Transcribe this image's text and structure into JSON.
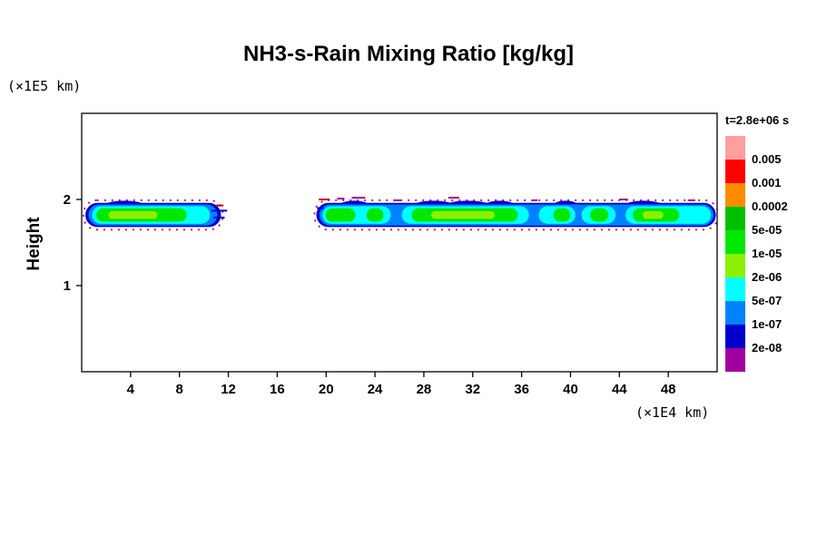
{
  "chart_data": {
    "type": "filled-contour",
    "title": "NH3-s-Rain Mixing Ratio [kg/kg]",
    "time_label": "t=2.8e+06 s",
    "x_unit_label": "(×1E4 km)",
    "y_unit_label": "(×1E5 km)",
    "y_axis_title": "Height",
    "xlim": [
      0,
      52
    ],
    "ylim": [
      0,
      3
    ],
    "xticks": [
      4,
      8,
      12,
      16,
      20,
      24,
      28,
      32,
      36,
      40,
      44,
      48
    ],
    "yticks": [
      1,
      2
    ],
    "grid": false,
    "colorbar": {
      "position": "right",
      "boundary_labels_top_to_bottom": [
        "0.005",
        "0.001",
        "0.0002",
        "5e-05",
        "1e-05",
        "2e-06",
        "5e-07",
        "1e-07",
        "2e-08"
      ],
      "cell_colors_top_to_bottom": [
        "#ff9e9e",
        "#ff0000",
        "#ff8c00",
        "#00c000",
        "#00e800",
        "#8cf000",
        "#00ffff",
        "#0082ff",
        "#0000cd",
        "#a100a1"
      ]
    },
    "bands": {
      "y_center": 1.82,
      "layers": [
        {
          "name": "fringe",
          "color": "#a100a1",
          "half_height": 0.155,
          "style": "dashed-outline",
          "segments": [
            [
              0.3,
              11.4
            ],
            [
              19.2,
              51.9
            ]
          ]
        },
        {
          "name": "navy",
          "color": "#0000cd",
          "half_height": 0.14,
          "segments": [
            [
              0.3,
              11.4
            ],
            [
              19.2,
              51.9
            ]
          ]
        },
        {
          "name": "blue",
          "color": "#0082ff",
          "half_height": 0.122,
          "segments": [
            [
              0.55,
              11.1
            ],
            [
              19.45,
              51.7
            ]
          ]
        },
        {
          "name": "cyan",
          "color": "#00ffff",
          "half_height": 0.103,
          "segments": [
            [
              0.85,
              10.5
            ],
            [
              19.7,
              25.3
            ],
            [
              26.2,
              36.6
            ],
            [
              37.4,
              40.4
            ],
            [
              40.9,
              43.7
            ],
            [
              44.5,
              51.5
            ]
          ]
        },
        {
          "name": "green",
          "color": "#00e800",
          "half_height": 0.078,
          "segments": [
            [
              1.2,
              8.6
            ],
            [
              19.95,
              22.4
            ],
            [
              23.3,
              24.7
            ],
            [
              27.0,
              35.7
            ],
            [
              38.6,
              40.0
            ],
            [
              41.6,
              43.1
            ],
            [
              45.1,
              48.9
            ]
          ]
        },
        {
          "name": "light-green",
          "color": "#8cf000",
          "half_height": 0.045,
          "segments": [
            [
              2.2,
              6.2
            ],
            [
              28.6,
              33.8
            ],
            [
              45.9,
              47.6
            ]
          ]
        }
      ],
      "top_bumps": [
        {
          "cx": 3.5,
          "rx": 1.6
        },
        {
          "cx": 22.3,
          "rx": 1.2
        },
        {
          "cx": 28.8,
          "rx": 1.6
        },
        {
          "cx": 31.6,
          "rx": 1.8
        },
        {
          "cx": 34.2,
          "rx": 1.2
        },
        {
          "cx": 39.6,
          "rx": 1.0
        },
        {
          "cx": 46.0,
          "rx": 1.5
        }
      ],
      "bump_cy": 1.935,
      "bump_ry": 0.05,
      "speckles": [
        {
          "x0": 19.4,
          "x1": 20.3,
          "y": 2.0,
          "color": "#cc0000"
        },
        {
          "x0": 20.9,
          "x1": 21.5,
          "y": 2.01,
          "color": "#a100a1"
        },
        {
          "x0": 22.1,
          "x1": 23.2,
          "y": 2.02,
          "color": "#a100a1"
        },
        {
          "x0": 25.6,
          "x1": 26.1,
          "y": 1.99,
          "color": "#a100a1"
        },
        {
          "x0": 30.0,
          "x1": 30.9,
          "y": 2.02,
          "color": "#a100a1"
        },
        {
          "x0": 36.8,
          "x1": 37.3,
          "y": 1.99,
          "color": "#a100a1"
        },
        {
          "x0": 44.0,
          "x1": 44.7,
          "y": 2.0,
          "color": "#a100a1"
        },
        {
          "x0": 49.6,
          "x1": 50.2,
          "y": 1.99,
          "color": "#a100a1"
        },
        {
          "x0": 11.0,
          "x1": 11.6,
          "y": 1.93,
          "color": "#cc0000"
        },
        {
          "x0": 10.6,
          "x1": 11.9,
          "y": 1.87,
          "color": "#0000cd"
        },
        {
          "x0": 10.8,
          "x1": 11.7,
          "y": 1.79,
          "color": "#0000cd"
        },
        {
          "x0": 19.25,
          "x1": 19.8,
          "y": 1.9,
          "color": "#0000cd"
        }
      ]
    }
  }
}
